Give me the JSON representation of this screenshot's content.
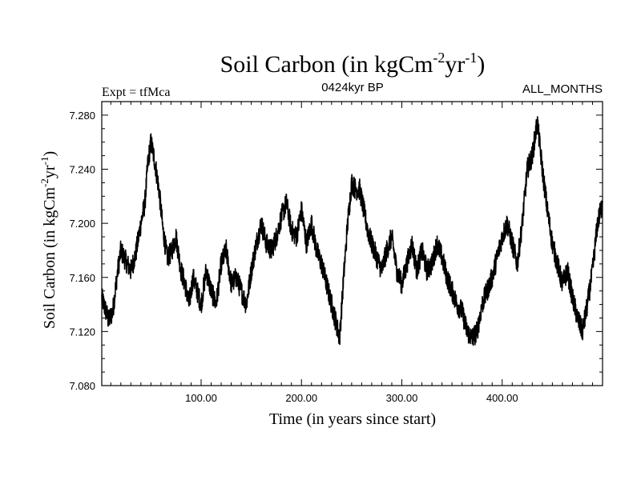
{
  "chart_data": {
    "type": "line",
    "title_main": "Soil Carbon (in kgCm",
    "title_sup1": "-2",
    "title_mid": "yr",
    "title_sup2": "-1",
    "title_end": ")",
    "subtitle_left": "Expt = tfMca",
    "subtitle_center": "0424kyr BP",
    "subtitle_right": "ALL_MONTHS",
    "xlabel": "Time (in years since start)",
    "ylabel_main": "Soil Carbon (in kgCm",
    "ylabel_sup1": "-2",
    "ylabel_mid": "yr",
    "ylabel_sup2": "-1",
    "ylabel_end": ")",
    "xlim": [
      1,
      500
    ],
    "ylim": [
      7.08,
      7.29
    ],
    "x_ticks": [
      100,
      200,
      300,
      400
    ],
    "x_tick_labels": [
      "100.00",
      "200.00",
      "300.00",
      "400.00"
    ],
    "y_ticks": [
      7.08,
      7.12,
      7.16,
      7.2,
      7.24,
      7.28
    ],
    "y_tick_labels": [
      "7.080",
      "7.120",
      "7.160",
      "7.200",
      "7.240",
      "7.280"
    ],
    "series": [
      {
        "name": "Soil Carbon",
        "color": "#000000",
        "x": [
          1,
          8,
          12,
          16,
          20,
          25,
          30,
          35,
          40,
          44,
          47,
          50,
          54,
          58,
          62,
          66,
          70,
          75,
          80,
          84,
          88,
          92,
          96,
          100,
          105,
          110,
          115,
          120,
          125,
          130,
          135,
          140,
          145,
          150,
          155,
          160,
          165,
          170,
          175,
          180,
          185,
          190,
          195,
          200,
          205,
          210,
          215,
          220,
          225,
          230,
          235,
          238,
          242,
          246,
          250,
          254,
          258,
          262,
          266,
          270,
          275,
          280,
          285,
          290,
          295,
          300,
          305,
          310,
          315,
          320,
          325,
          330,
          335,
          340,
          345,
          350,
          355,
          360,
          365,
          370,
          375,
          380,
          385,
          390,
          395,
          400,
          405,
          410,
          415,
          420,
          425,
          430,
          435,
          440,
          445,
          450,
          455,
          460,
          465,
          470,
          475,
          480,
          485,
          490,
          495,
          500
        ],
        "values": [
          7.145,
          7.128,
          7.135,
          7.16,
          7.18,
          7.172,
          7.165,
          7.178,
          7.2,
          7.215,
          7.245,
          7.26,
          7.245,
          7.225,
          7.195,
          7.175,
          7.178,
          7.19,
          7.165,
          7.155,
          7.14,
          7.16,
          7.15,
          7.14,
          7.165,
          7.15,
          7.14,
          7.17,
          7.18,
          7.155,
          7.16,
          7.15,
          7.14,
          7.165,
          7.185,
          7.2,
          7.185,
          7.18,
          7.19,
          7.205,
          7.215,
          7.195,
          7.19,
          7.21,
          7.185,
          7.2,
          7.18,
          7.17,
          7.155,
          7.14,
          7.125,
          7.115,
          7.16,
          7.2,
          7.23,
          7.225,
          7.225,
          7.21,
          7.195,
          7.185,
          7.175,
          7.165,
          7.18,
          7.19,
          7.165,
          7.155,
          7.17,
          7.185,
          7.165,
          7.18,
          7.165,
          7.17,
          7.185,
          7.175,
          7.16,
          7.15,
          7.14,
          7.135,
          7.12,
          7.115,
          7.12,
          7.14,
          7.15,
          7.16,
          7.175,
          7.19,
          7.2,
          7.185,
          7.17,
          7.2,
          7.24,
          7.25,
          7.275,
          7.24,
          7.21,
          7.185,
          7.17,
          7.155,
          7.165,
          7.145,
          7.13,
          7.12,
          7.14,
          7.165,
          7.2,
          7.215
        ]
      }
    ]
  }
}
